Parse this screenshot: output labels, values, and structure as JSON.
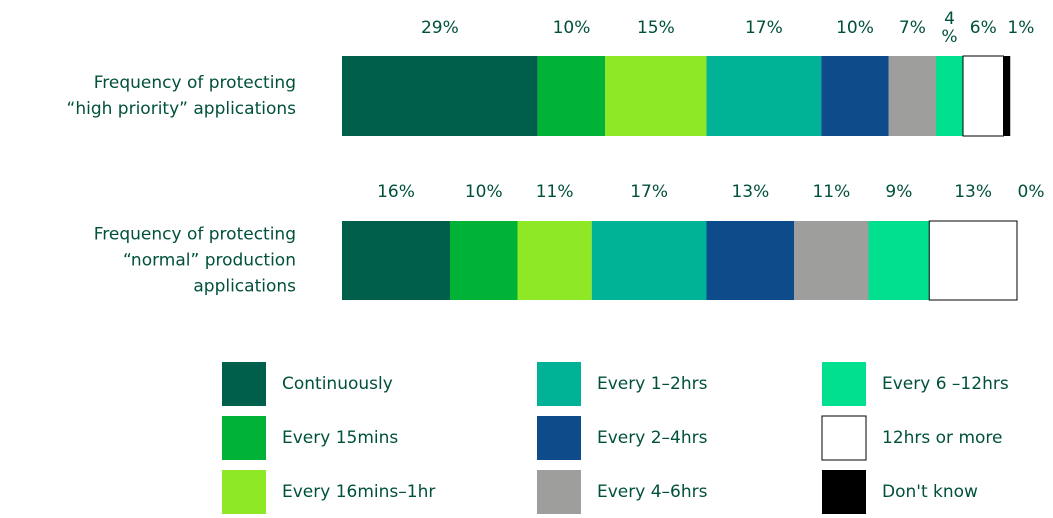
{
  "chart_data": {
    "type": "stacked-bar-horizontal",
    "categories": [
      "Frequency of protecting\n“high priority” applications",
      "Frequency of protecting\n“normal” production\napplications"
    ],
    "xlim": [
      0,
      100
    ],
    "series": [
      {
        "name": "Continuously",
        "color": "#005f4a",
        "values": [
          29,
          16
        ],
        "value_labels": [
          "29%",
          "16%"
        ]
      },
      {
        "name": "Every 15mins",
        "color": "#00b336",
        "values": [
          10,
          10
        ],
        "value_labels": [
          "10%",
          "10%"
        ]
      },
      {
        "name": "Every 16mins–1hr",
        "color": "#8fe825",
        "values": [
          15,
          11
        ],
        "value_labels": [
          "15%",
          "11%"
        ]
      },
      {
        "name": "Every 1–2hrs",
        "color": "#00b396",
        "values": [
          17,
          17
        ],
        "value_labels": [
          "17%",
          "17%"
        ]
      },
      {
        "name": "Every 2–4hrs",
        "color": "#0d4b8a",
        "values": [
          10,
          13
        ],
        "value_labels": [
          "10%",
          "13%"
        ]
      },
      {
        "name": "Every 4–6hrs",
        "color": "#9e9e9c",
        "values": [
          7,
          11
        ],
        "value_labels": [
          "7%",
          "11%"
        ]
      },
      {
        "name": "Every 6 –12hrs",
        "color": "#00e08e",
        "values": [
          4,
          9
        ],
        "value_labels": [
          "4%",
          "9%"
        ]
      },
      {
        "name": "12hrs or more",
        "color": "#ffffff",
        "values": [
          6,
          13
        ],
        "value_labels": [
          "6%",
          "13%"
        ]
      },
      {
        "name": "Don't know",
        "color": "#000000",
        "values": [
          1,
          0
        ],
        "value_labels": [
          "1%",
          "0%"
        ]
      }
    ]
  }
}
